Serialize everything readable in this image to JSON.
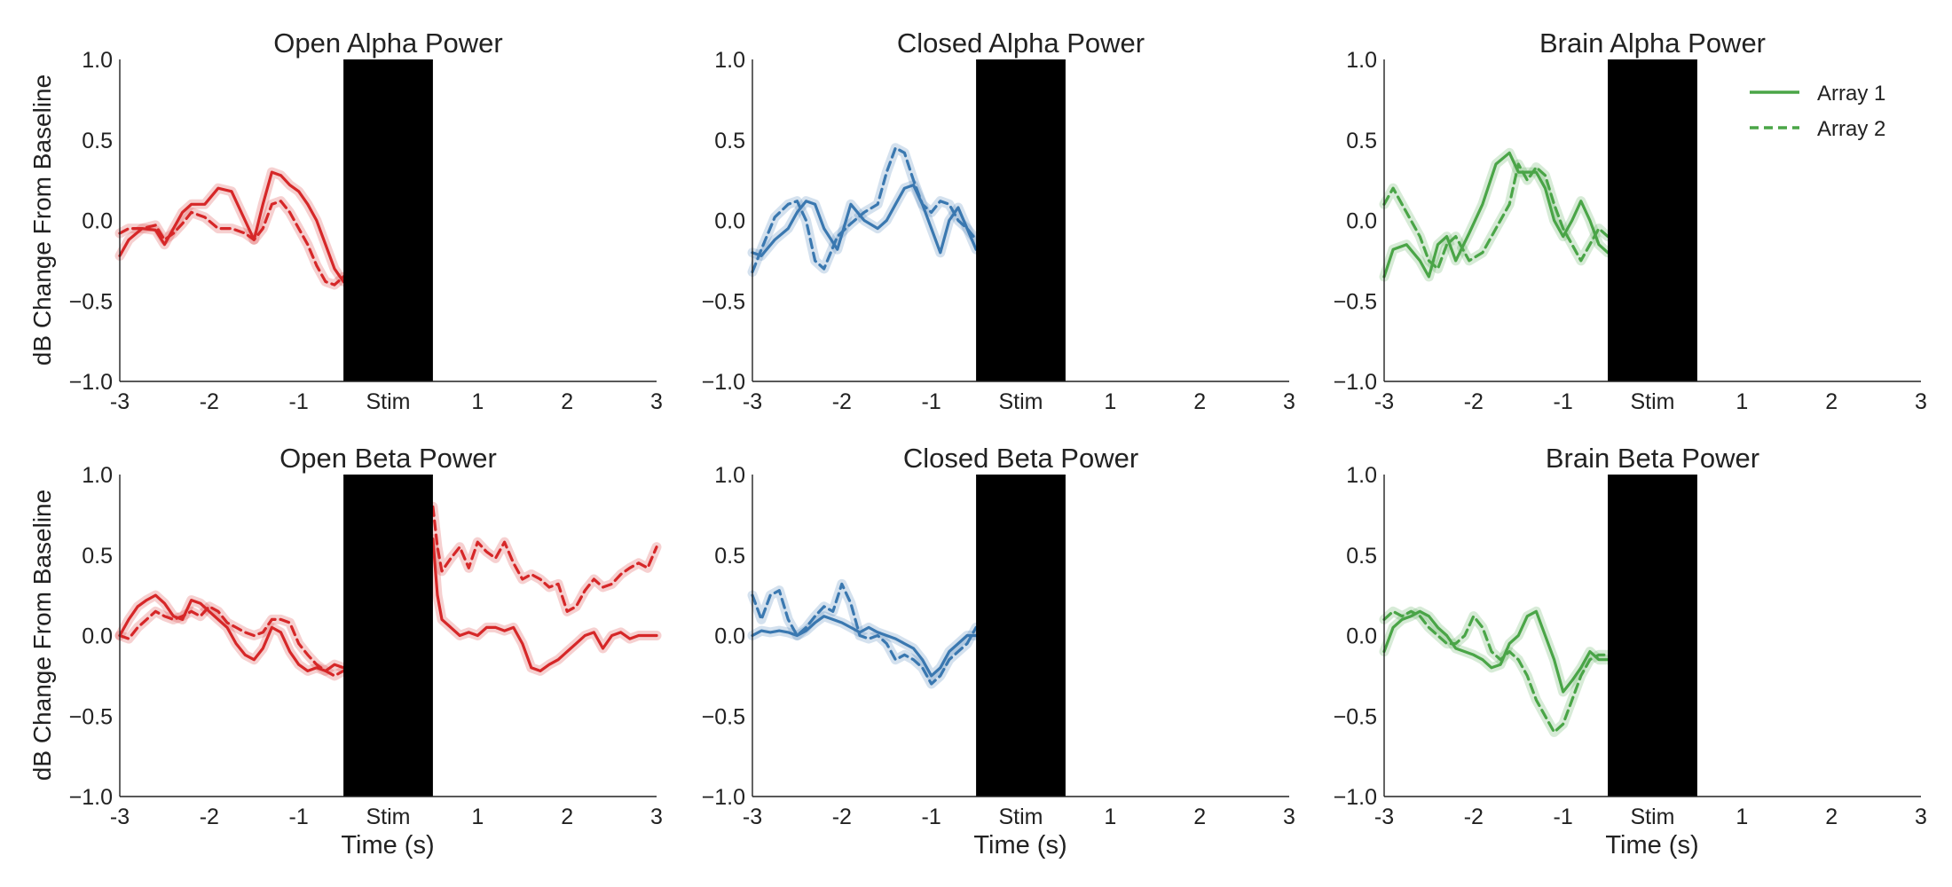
{
  "figure": {
    "ylabel": "dB Change From Baseline",
    "xlabel": "Time (s)",
    "stim_label": "Stim",
    "stim_window": [
      -0.5,
      0.5
    ],
    "x_range": [
      -3,
      3
    ],
    "y_range": [
      -1.0,
      1.0
    ],
    "x_ticks": [
      "-3",
      "-2",
      "-1",
      "Stim",
      "1",
      "2",
      "3"
    ],
    "y_ticks": [
      "1.0",
      "0.5",
      "0.0",
      "−0.5",
      "−1.0"
    ],
    "legend": {
      "placement": "top-right of panel 3",
      "entries": [
        "Array 1",
        "Array 2"
      ]
    }
  },
  "chart_data": [
    {
      "type": "line",
      "title": "Open Alpha Power",
      "color": "#d62728",
      "xlim": [
        -3,
        3
      ],
      "ylim": [
        -1,
        1
      ],
      "series": [
        {
          "name": "Array 1",
          "style": "solid",
          "x": [
            -3,
            -2.9,
            -2.75,
            -2.6,
            -2.5,
            -2.4,
            -2.3,
            -2.2,
            -2.05,
            -1.9,
            -1.75,
            -1.6,
            -1.5,
            -1.4,
            -1.3,
            -1.2,
            -1.1,
            -1.0,
            -0.9,
            -0.8,
            -0.7,
            -0.6,
            -0.5
          ],
          "y": [
            -0.22,
            -0.12,
            -0.05,
            -0.06,
            -0.15,
            -0.05,
            0.05,
            0.1,
            0.1,
            0.2,
            0.18,
            0.0,
            -0.12,
            0.1,
            0.3,
            0.28,
            0.22,
            0.18,
            0.1,
            0.0,
            -0.15,
            -0.3,
            -0.38
          ]
        },
        {
          "name": "Array 2",
          "style": "dashed",
          "x": [
            -3,
            -2.9,
            -2.75,
            -2.6,
            -2.5,
            -2.4,
            -2.3,
            -2.2,
            -2.05,
            -1.9,
            -1.75,
            -1.6,
            -1.5,
            -1.4,
            -1.3,
            -1.2,
            -1.1,
            -1.0,
            -0.9,
            -0.8,
            -0.7,
            -0.6,
            -0.5
          ],
          "y": [
            -0.08,
            -0.05,
            -0.05,
            -0.03,
            -0.12,
            -0.08,
            -0.02,
            0.05,
            0.02,
            -0.05,
            -0.05,
            -0.08,
            -0.12,
            -0.05,
            0.1,
            0.12,
            0.05,
            -0.05,
            -0.15,
            -0.28,
            -0.38,
            -0.4,
            -0.35
          ]
        }
      ]
    },
    {
      "type": "line",
      "title": "Closed Alpha Power",
      "color": "#3a78b0",
      "xlim": [
        -3,
        3
      ],
      "ylim": [
        -1,
        1
      ],
      "series": [
        {
          "name": "Array 1",
          "style": "solid",
          "x": [
            -3,
            -2.9,
            -2.75,
            -2.6,
            -2.5,
            -2.4,
            -2.3,
            -2.2,
            -2.05,
            -1.9,
            -1.75,
            -1.6,
            -1.5,
            -1.4,
            -1.3,
            -1.2,
            -1.1,
            -1.0,
            -0.9,
            -0.8,
            -0.7,
            -0.6,
            -0.5
          ],
          "y": [
            -0.2,
            -0.22,
            -0.12,
            -0.05,
            0.05,
            0.12,
            0.1,
            -0.05,
            -0.18,
            0.1,
            0.0,
            -0.05,
            0.0,
            0.1,
            0.2,
            0.22,
            0.1,
            -0.05,
            -0.2,
            0.0,
            0.08,
            -0.05,
            -0.18
          ]
        },
        {
          "name": "Array 2",
          "style": "dashed",
          "x": [
            -3,
            -2.9,
            -2.75,
            -2.6,
            -2.5,
            -2.4,
            -2.3,
            -2.2,
            -2.05,
            -1.9,
            -1.75,
            -1.6,
            -1.5,
            -1.4,
            -1.3,
            -1.2,
            -1.1,
            -1.0,
            -0.9,
            -0.8,
            -0.7,
            -0.6,
            -0.5
          ],
          "y": [
            -0.32,
            -0.18,
            0.02,
            0.1,
            0.12,
            0.0,
            -0.25,
            -0.3,
            -0.1,
            -0.02,
            0.05,
            0.1,
            0.3,
            0.45,
            0.42,
            0.25,
            0.1,
            0.05,
            0.12,
            0.1,
            0.0,
            -0.05,
            -0.12
          ]
        }
      ]
    },
    {
      "type": "line",
      "title": "Brain Alpha Power",
      "color": "#4aa547",
      "xlim": [
        -3,
        3
      ],
      "ylim": [
        -1,
        1
      ],
      "series": [
        {
          "name": "Array 1",
          "style": "solid",
          "x": [
            -3,
            -2.9,
            -2.75,
            -2.6,
            -2.5,
            -2.4,
            -2.3,
            -2.2,
            -2.05,
            -1.9,
            -1.75,
            -1.6,
            -1.5,
            -1.4,
            -1.3,
            -1.2,
            -1.1,
            -1.0,
            -0.9,
            -0.8,
            -0.7,
            -0.6,
            -0.5
          ],
          "y": [
            -0.35,
            -0.18,
            -0.15,
            -0.25,
            -0.35,
            -0.15,
            -0.1,
            -0.25,
            -0.08,
            0.1,
            0.35,
            0.42,
            0.3,
            0.3,
            0.3,
            0.2,
            0.0,
            -0.1,
            0.0,
            0.12,
            0.0,
            -0.15,
            -0.2
          ]
        },
        {
          "name": "Array 2",
          "style": "dashed",
          "x": [
            -3,
            -2.9,
            -2.75,
            -2.6,
            -2.5,
            -2.4,
            -2.3,
            -2.2,
            -2.05,
            -1.9,
            -1.75,
            -1.6,
            -1.5,
            -1.4,
            -1.3,
            -1.2,
            -1.1,
            -1.0,
            -0.9,
            -0.8,
            -0.7,
            -0.6,
            -0.5
          ],
          "y": [
            0.1,
            0.2,
            0.05,
            -0.1,
            -0.25,
            -0.3,
            -0.15,
            -0.1,
            -0.25,
            -0.2,
            -0.05,
            0.1,
            0.35,
            0.25,
            0.33,
            0.28,
            0.1,
            -0.05,
            -0.15,
            -0.25,
            -0.15,
            -0.05,
            -0.1
          ]
        }
      ]
    },
    {
      "type": "line",
      "title": "Open Beta Power",
      "color": "#d62728",
      "xlim": [
        -3,
        3
      ],
      "ylim": [
        -1,
        1
      ],
      "series": [
        {
          "name": "Array 1",
          "style": "solid",
          "x": [
            -3,
            -2.9,
            -2.8,
            -2.7,
            -2.6,
            -2.5,
            -2.4,
            -2.3,
            -2.2,
            -2.1,
            -2.0,
            -1.9,
            -1.8,
            -1.7,
            -1.6,
            -1.5,
            -1.4,
            -1.3,
            -1.2,
            -1.1,
            -1.0,
            -0.9,
            -0.8,
            -0.7,
            -0.6,
            -0.5,
            0.5,
            0.55,
            0.6,
            0.7,
            0.8,
            0.9,
            1.0,
            1.1,
            1.2,
            1.3,
            1.4,
            1.5,
            1.6,
            1.7,
            1.8,
            1.9,
            2.0,
            2.1,
            2.2,
            2.3,
            2.4,
            2.5,
            2.6,
            2.7,
            2.8,
            2.9,
            3.0
          ],
          "y": [
            0.0,
            0.1,
            0.18,
            0.22,
            0.25,
            0.2,
            0.12,
            0.1,
            0.22,
            0.2,
            0.15,
            0.1,
            0.05,
            -0.05,
            -0.12,
            -0.15,
            -0.08,
            0.05,
            0.02,
            -0.1,
            -0.18,
            -0.22,
            -0.2,
            -0.22,
            -0.18,
            -0.2,
            0.6,
            0.25,
            0.1,
            0.05,
            0.0,
            0.02,
            0.0,
            0.05,
            0.05,
            0.03,
            0.05,
            -0.05,
            -0.2,
            -0.22,
            -0.18,
            -0.15,
            -0.1,
            -0.05,
            0.0,
            0.02,
            -0.08,
            0.0,
            0.02,
            -0.02,
            0.0,
            0.0,
            0.0
          ]
        },
        {
          "name": "Array 2",
          "style": "dashed",
          "x": [
            -3,
            -2.9,
            -2.8,
            -2.7,
            -2.6,
            -2.5,
            -2.4,
            -2.3,
            -2.2,
            -2.1,
            -2.0,
            -1.9,
            -1.8,
            -1.7,
            -1.6,
            -1.5,
            -1.4,
            -1.3,
            -1.2,
            -1.1,
            -1.0,
            -0.9,
            -0.8,
            -0.7,
            -0.6,
            -0.5,
            0.5,
            0.55,
            0.6,
            0.7,
            0.8,
            0.9,
            1.0,
            1.1,
            1.2,
            1.3,
            1.4,
            1.5,
            1.6,
            1.7,
            1.8,
            1.9,
            2.0,
            2.1,
            2.2,
            2.3,
            2.4,
            2.5,
            2.6,
            2.7,
            2.8,
            2.9,
            3.0
          ],
          "y": [
            0.0,
            -0.02,
            0.05,
            0.1,
            0.15,
            0.12,
            0.1,
            0.12,
            0.15,
            0.12,
            0.18,
            0.15,
            0.08,
            0.05,
            0.02,
            0.0,
            0.02,
            0.1,
            0.1,
            0.08,
            -0.05,
            -0.12,
            -0.18,
            -0.22,
            -0.25,
            -0.22,
            0.8,
            0.55,
            0.4,
            0.48,
            0.55,
            0.42,
            0.58,
            0.52,
            0.48,
            0.58,
            0.45,
            0.35,
            0.38,
            0.35,
            0.3,
            0.32,
            0.15,
            0.18,
            0.28,
            0.35,
            0.3,
            0.32,
            0.38,
            0.42,
            0.45,
            0.42,
            0.55
          ]
        }
      ]
    },
    {
      "type": "line",
      "title": "Closed Beta Power",
      "color": "#3a78b0",
      "xlim": [
        -3,
        3
      ],
      "ylim": [
        -1,
        1
      ],
      "series": [
        {
          "name": "Array 1",
          "style": "solid",
          "x": [
            -3,
            -2.9,
            -2.8,
            -2.7,
            -2.6,
            -2.5,
            -2.4,
            -2.3,
            -2.2,
            -2.1,
            -2.0,
            -1.9,
            -1.8,
            -1.7,
            -1.6,
            -1.5,
            -1.4,
            -1.3,
            -1.2,
            -1.1,
            -1.0,
            -0.9,
            -0.8,
            -0.7,
            -0.6,
            -0.5
          ],
          "y": [
            0.0,
            0.03,
            0.02,
            0.03,
            0.02,
            0.0,
            0.03,
            0.08,
            0.12,
            0.1,
            0.08,
            0.05,
            0.02,
            0.05,
            0.02,
            0.0,
            -0.02,
            -0.05,
            -0.08,
            -0.15,
            -0.25,
            -0.2,
            -0.1,
            -0.05,
            0.0,
            0.0
          ]
        },
        {
          "name": "Array 2",
          "style": "dashed",
          "x": [
            -3,
            -2.9,
            -2.8,
            -2.7,
            -2.6,
            -2.5,
            -2.4,
            -2.3,
            -2.2,
            -2.1,
            -2.0,
            -1.9,
            -1.8,
            -1.7,
            -1.6,
            -1.5,
            -1.4,
            -1.3,
            -1.2,
            -1.1,
            -1.0,
            -0.9,
            -0.8,
            -0.7,
            -0.6,
            -0.5
          ],
          "y": [
            0.25,
            0.1,
            0.25,
            0.28,
            0.1,
            0.0,
            0.05,
            0.12,
            0.18,
            0.15,
            0.32,
            0.2,
            0.0,
            -0.02,
            0.0,
            -0.05,
            -0.15,
            -0.12,
            -0.15,
            -0.2,
            -0.3,
            -0.25,
            -0.15,
            -0.1,
            -0.05,
            0.05
          ]
        }
      ]
    },
    {
      "type": "line",
      "title": "Brain Beta Power",
      "color": "#4aa547",
      "xlim": [
        -3,
        3
      ],
      "ylim": [
        -1,
        1
      ],
      "series": [
        {
          "name": "Array 1",
          "style": "solid",
          "x": [
            -3,
            -2.9,
            -2.8,
            -2.7,
            -2.6,
            -2.5,
            -2.4,
            -2.3,
            -2.2,
            -2.1,
            -2.0,
            -1.9,
            -1.8,
            -1.7,
            -1.6,
            -1.5,
            -1.4,
            -1.3,
            -1.2,
            -1.1,
            -1.0,
            -0.9,
            -0.8,
            -0.7,
            -0.6,
            -0.5
          ],
          "y": [
            -0.1,
            0.05,
            0.1,
            0.12,
            0.15,
            0.12,
            0.05,
            0.0,
            -0.08,
            -0.1,
            -0.12,
            -0.15,
            -0.2,
            -0.18,
            -0.05,
            0.0,
            0.12,
            0.15,
            0.0,
            -0.15,
            -0.35,
            -0.28,
            -0.2,
            -0.1,
            -0.15,
            -0.15
          ]
        },
        {
          "name": "Array 2",
          "style": "dashed",
          "x": [
            -3,
            -2.9,
            -2.8,
            -2.7,
            -2.6,
            -2.5,
            -2.4,
            -2.3,
            -2.2,
            -2.1,
            -2.0,
            -1.9,
            -1.8,
            -1.7,
            -1.6,
            -1.5,
            -1.4,
            -1.3,
            -1.2,
            -1.1,
            -1.0,
            -0.9,
            -0.8,
            -0.7,
            -0.6,
            -0.5
          ],
          "y": [
            0.1,
            0.15,
            0.12,
            0.15,
            0.12,
            0.05,
            0.0,
            -0.05,
            -0.05,
            0.0,
            0.12,
            0.05,
            -0.1,
            -0.15,
            -0.1,
            -0.15,
            -0.25,
            -0.4,
            -0.5,
            -0.6,
            -0.55,
            -0.4,
            -0.25,
            -0.15,
            -0.12,
            -0.12
          ]
        }
      ]
    }
  ]
}
